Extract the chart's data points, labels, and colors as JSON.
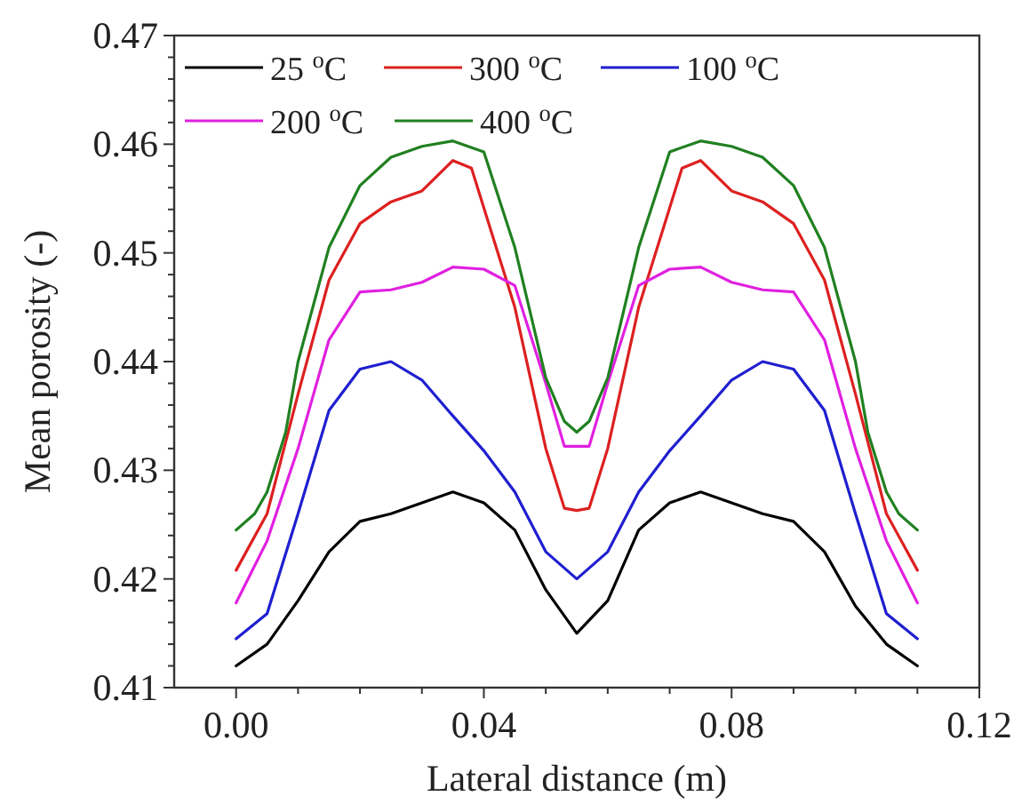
{
  "chart_data": {
    "type": "line",
    "xlabel": "Lateral distance (m)",
    "ylabel": "Mean porosity (-)",
    "xlim": [
      -0.01,
      0.12
    ],
    "ylim": [
      0.41,
      0.47
    ],
    "xticks": [
      {
        "value": 0,
        "label": "0.00"
      },
      {
        "value": 0.01,
        "label": null
      },
      {
        "value": 0.02,
        "label": null
      },
      {
        "value": 0.03,
        "label": null
      },
      {
        "value": 0.04,
        "label": "0.04"
      },
      {
        "value": 0.05,
        "label": null
      },
      {
        "value": 0.06,
        "label": null
      },
      {
        "value": 0.07,
        "label": null
      },
      {
        "value": 0.08,
        "label": "0.08"
      },
      {
        "value": 0.09,
        "label": null
      },
      {
        "value": 0.1,
        "label": null
      },
      {
        "value": 0.11,
        "label": null
      },
      {
        "value": 0.12,
        "label": "0.12"
      }
    ],
    "yticks": [
      0.41,
      {
        "value": 0.412,
        "label": null
      },
      {
        "value": 0.414,
        "label": null
      },
      {
        "value": 0.416,
        "label": null
      },
      {
        "value": 0.418,
        "label": null
      },
      0.42,
      {
        "value": 0.422,
        "label": null
      },
      {
        "value": 0.424,
        "label": null
      },
      {
        "value": 0.426,
        "label": null
      },
      {
        "value": 0.428,
        "label": null
      },
      0.43,
      {
        "value": 0.432,
        "label": null
      },
      {
        "value": 0.434,
        "label": null
      },
      {
        "value": 0.436,
        "label": null
      },
      {
        "value": 0.438,
        "label": null
      },
      0.44,
      {
        "value": 0.442,
        "label": null
      },
      {
        "value": 0.444,
        "label": null
      },
      {
        "value": 0.446,
        "label": null
      },
      {
        "value": 0.448,
        "label": null
      },
      0.45,
      {
        "value": 0.452,
        "label": null
      },
      {
        "value": 0.454,
        "label": null
      },
      {
        "value": 0.456,
        "label": null
      },
      {
        "value": 0.458,
        "label": null
      },
      0.46,
      {
        "value": 0.462,
        "label": null
      },
      {
        "value": 0.464,
        "label": null
      },
      {
        "value": 0.466,
        "label": null
      },
      {
        "value": 0.468,
        "label": null
      },
      0.47
    ],
    "grid": false,
    "legend": "top",
    "marker": "none",
    "line_style": "solid",
    "series": [
      {
        "name": "25 $^{o}$C",
        "color": "#000000",
        "x": [
          0,
          0.005,
          0.01,
          0.015,
          0.02,
          0.025,
          0.03,
          0.035,
          0.04,
          0.045,
          0.05,
          0.055,
          0.06,
          0.065,
          0.07,
          0.075,
          0.08,
          0.085,
          0.09,
          0.095,
          0.1,
          0.105,
          0.11
        ],
        "values": [
          0.412,
          0.414,
          0.418,
          0.4225,
          0.4253,
          0.426,
          0.427,
          0.428,
          0.427,
          0.4245,
          0.419,
          0.415,
          0.418,
          0.4245,
          0.427,
          0.428,
          0.427,
          0.426,
          0.4253,
          0.4225,
          0.4175,
          0.414,
          0.412
        ]
      },
      {
        "name": "300 $^{o}$C",
        "color": "#dd2020",
        "x": [
          0,
          0.005,
          0.01,
          0.015,
          0.02,
          0.025,
          0.03,
          0.035,
          0.038,
          0.045,
          0.05,
          0.053,
          0.055,
          0.057,
          0.06,
          0.065,
          0.072,
          0.075,
          0.08,
          0.085,
          0.09,
          0.095,
          0.1,
          0.105,
          0.11
        ],
        "values": [
          0.4208,
          0.426,
          0.437,
          0.4475,
          0.4527,
          0.4547,
          0.4557,
          0.4585,
          0.4578,
          0.445,
          0.432,
          0.4265,
          0.4263,
          0.4265,
          0.432,
          0.445,
          0.4578,
          0.4585,
          0.4557,
          0.4547,
          0.4527,
          0.4475,
          0.437,
          0.426,
          0.4208
        ]
      },
      {
        "name": "100 $^{o}$C",
        "color": "#1f1fd0",
        "x": [
          0,
          0.005,
          0.01,
          0.015,
          0.02,
          0.025,
          0.03,
          0.035,
          0.04,
          0.045,
          0.05,
          0.055,
          0.06,
          0.065,
          0.07,
          0.075,
          0.08,
          0.085,
          0.09,
          0.095,
          0.1,
          0.105,
          0.11
        ],
        "values": [
          0.4145,
          0.4168,
          0.426,
          0.4355,
          0.4393,
          0.44,
          0.4383,
          0.435,
          0.4318,
          0.428,
          0.4225,
          0.42,
          0.4225,
          0.428,
          0.4318,
          0.435,
          0.4383,
          0.44,
          0.4393,
          0.4355,
          0.426,
          0.4168,
          0.4145
        ]
      },
      {
        "name": "200 $^{o}$C",
        "color": "#e020e0",
        "x": [
          0,
          0.005,
          0.01,
          0.015,
          0.02,
          0.025,
          0.03,
          0.035,
          0.04,
          0.045,
          0.05,
          0.053,
          0.055,
          0.057,
          0.06,
          0.065,
          0.07,
          0.075,
          0.08,
          0.085,
          0.09,
          0.095,
          0.1,
          0.105,
          0.11
        ],
        "values": [
          0.4178,
          0.4235,
          0.432,
          0.442,
          0.4464,
          0.4466,
          0.4473,
          0.4487,
          0.4485,
          0.447,
          0.438,
          0.4322,
          0.4322,
          0.4322,
          0.438,
          0.447,
          0.4485,
          0.4487,
          0.4473,
          0.4466,
          0.4464,
          0.442,
          0.432,
          0.4235,
          0.4178
        ]
      },
      {
        "name": "400 $^{o}$C",
        "color": "#208020",
        "x": [
          0,
          0.003,
          0.005,
          0.008,
          0.01,
          0.015,
          0.02,
          0.025,
          0.03,
          0.035,
          0.04,
          0.045,
          0.05,
          0.053,
          0.055,
          0.057,
          0.06,
          0.065,
          0.07,
          0.075,
          0.08,
          0.085,
          0.09,
          0.095,
          0.1,
          0.102,
          0.105,
          0.107,
          0.11
        ],
        "values": [
          0.4245,
          0.426,
          0.428,
          0.4335,
          0.44,
          0.4505,
          0.4562,
          0.4588,
          0.4598,
          0.4603,
          0.4593,
          0.4505,
          0.4385,
          0.4345,
          0.4335,
          0.4345,
          0.4385,
          0.4505,
          0.4593,
          0.4603,
          0.4598,
          0.4588,
          0.4562,
          0.4505,
          0.44,
          0.4335,
          0.428,
          0.426,
          0.4245
        ]
      }
    ]
  }
}
